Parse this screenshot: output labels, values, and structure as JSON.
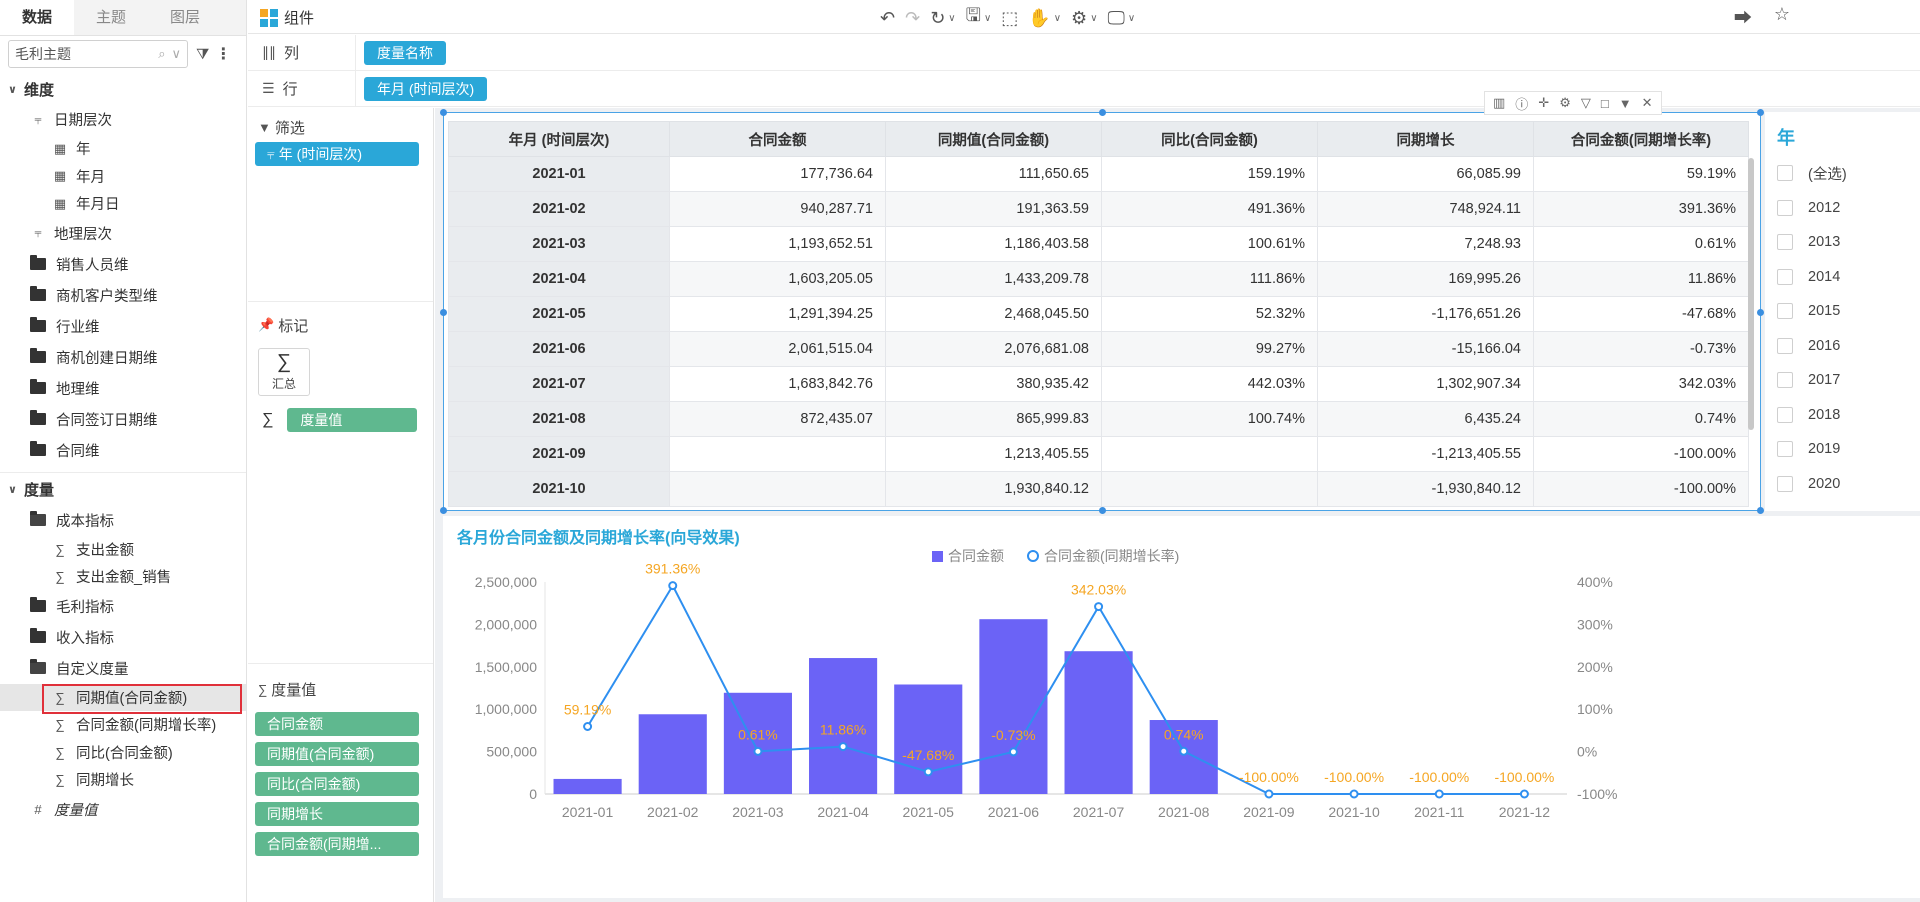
{
  "left": {
    "tabs": [
      "数据",
      "主题",
      "图层"
    ],
    "search_value": "毛利主题",
    "dimension_header": "维度",
    "dimensions": {
      "date_hierarchy": "日期层次",
      "date_children": [
        "年",
        "年月",
        "年月日"
      ],
      "geo_hierarchy": "地理层次",
      "folders": [
        "销售人员维",
        "商机客户类型维",
        "行业维",
        "商机创建日期维",
        "地理维",
        "合同签订日期维",
        "合同维"
      ]
    },
    "measure_header": "度量",
    "measures": {
      "cost_folder": "成本指标",
      "cost_items": [
        "支出金额",
        "支出金额_销售"
      ],
      "profit_folder": "毛利指标",
      "income_folder": "收入指标",
      "custom_folder": "自定义度量",
      "custom_items": [
        "同期值(合同金额)",
        "合同金额(同期增长率)",
        "同比(合同金额)",
        "同期增长"
      ],
      "measure_value": "度量值"
    }
  },
  "topbar": {
    "component_label": "组件"
  },
  "shelves": {
    "columns_label": "列",
    "columns_pill": "度量名称",
    "rows_label": "行",
    "rows_pill": "年月 (时间层次)"
  },
  "mid": {
    "filter_label": "筛选",
    "filter_pill": "年 (时间层次)",
    "mark_label": "标记",
    "sum_label": "汇总",
    "mark_pill": "度量值",
    "measure_values_label": "度量值",
    "measure_pills": [
      "合同金额",
      "同期值(合同金额)",
      "同比(合同金额)",
      "同期增长",
      "合同金额(同期增..."
    ]
  },
  "table": {
    "headers": [
      "年月 (时间层次)",
      "合同金额",
      "同期值(合同金额)",
      "同比(合同金额)",
      "同期增长",
      "合同金额(同期增长率)"
    ],
    "rows": [
      [
        "2021-01",
        "177,736.64",
        "111,650.65",
        "159.19%",
        "66,085.99",
        "59.19%"
      ],
      [
        "2021-02",
        "940,287.71",
        "191,363.59",
        "491.36%",
        "748,924.11",
        "391.36%"
      ],
      [
        "2021-03",
        "1,193,652.51",
        "1,186,403.58",
        "100.61%",
        "7,248.93",
        "0.61%"
      ],
      [
        "2021-04",
        "1,603,205.05",
        "1,433,209.78",
        "111.86%",
        "169,995.26",
        "11.86%"
      ],
      [
        "2021-05",
        "1,291,394.25",
        "2,468,045.50",
        "52.32%",
        "-1,176,651.26",
        "-47.68%"
      ],
      [
        "2021-06",
        "2,061,515.04",
        "2,076,681.08",
        "99.27%",
        "-15,166.04",
        "-0.73%"
      ],
      [
        "2021-07",
        "1,683,842.76",
        "380,935.42",
        "442.03%",
        "1,302,907.34",
        "342.03%"
      ],
      [
        "2021-08",
        "872,435.07",
        "865,999.83",
        "100.74%",
        "6,435.24",
        "0.74%"
      ],
      [
        "2021-09",
        "",
        "1,213,405.55",
        "",
        "-1,213,405.55",
        "-100.00%"
      ],
      [
        "2021-10",
        "",
        "1,930,840.12",
        "",
        "-1,930,840.12",
        "-100.00%"
      ]
    ]
  },
  "year_filter": {
    "title": "年",
    "items": [
      "(全选)",
      "2012",
      "2013",
      "2014",
      "2015",
      "2016",
      "2017",
      "2018",
      "2019",
      "2020"
    ]
  },
  "chart_data": {
    "type": "bar",
    "title": "各月份合同金额及同期增长率(向导效果)",
    "legend": [
      "合同金额",
      "合同金额(同期增长率)"
    ],
    "legend_position": "top-center",
    "categories": [
      "2021-01",
      "2021-02",
      "2021-03",
      "2021-04",
      "2021-05",
      "2021-06",
      "2021-07",
      "2021-08",
      "2021-09",
      "2021-10",
      "2021-11",
      "2021-12"
    ],
    "series": [
      {
        "name": "合同金额",
        "kind": "bar",
        "axis": "left",
        "color": "#6b63f6",
        "values": [
          177736.64,
          940287.71,
          1193652.51,
          1603205.05,
          1291394.25,
          2061515.04,
          1683842.76,
          872435.07,
          0,
          0,
          0,
          0
        ]
      },
      {
        "name": "合同金额(同期增长率)",
        "kind": "line",
        "axis": "right",
        "color": "#2e8ff0",
        "values": [
          59.19,
          391.36,
          0.61,
          11.86,
          -47.68,
          -0.73,
          342.03,
          0.74,
          -100.0,
          -100.0,
          -100.0,
          -100.0
        ],
        "labels": [
          "59.19%",
          "391.36%",
          "0.61%",
          "11.86%",
          "-47.68%",
          "-0.73%",
          "342.03%",
          "0.74%",
          "-100.00%",
          "-100.00%",
          "-100.00%",
          "-100.00%"
        ]
      }
    ],
    "ylim_left": [
      0,
      2500000
    ],
    "yticks_left": [
      "0",
      "500,000",
      "1,000,000",
      "1,500,000",
      "2,000,000",
      "2,500,000"
    ],
    "ylim_right": [
      -100,
      400
    ],
    "yticks_right": [
      "-100%",
      "0%",
      "100%",
      "200%",
      "300%",
      "400%"
    ],
    "label_color": "#f5a623"
  }
}
